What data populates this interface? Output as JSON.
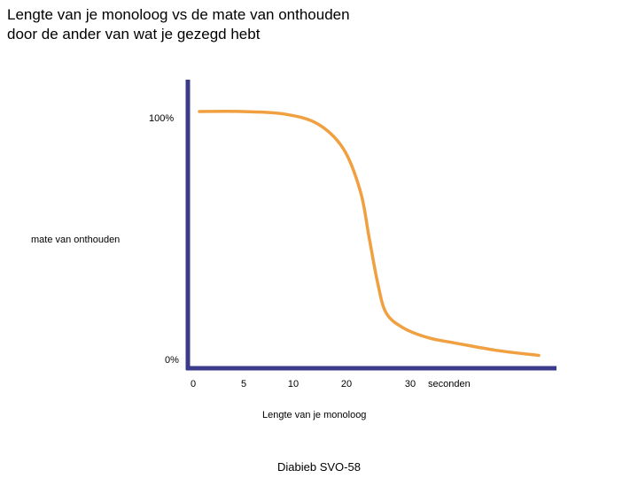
{
  "chart_data": {
    "type": "line",
    "title": "Lengte van je  monoloog vs de mate van onthouden\ndoor de ander van wat je gezegd hebt",
    "xlabel": "Lengte van je  monoloog",
    "ylabel": "mate van onthouden",
    "x_unit": "seconden",
    "x_tick_labels": [
      "0",
      "5",
      "10",
      "20",
      "30"
    ],
    "y_tick_labels": [
      "100%",
      "0%"
    ],
    "ylim": [
      0,
      100
    ],
    "grid": false,
    "legend": "none",
    "series": [
      {
        "x": [
          0,
          5,
          10,
          14,
          17,
          19,
          20,
          21,
          22,
          24,
          27,
          30,
          35,
          40
        ],
        "values": [
          100,
          100,
          99,
          95,
          85,
          68,
          50,
          32,
          20,
          14,
          10,
          8,
          5,
          3
        ]
      }
    ]
  },
  "colors": {
    "axis": "#3b3b8c",
    "line": "#f0a040"
  },
  "footer": "Diabieb SVO-58"
}
